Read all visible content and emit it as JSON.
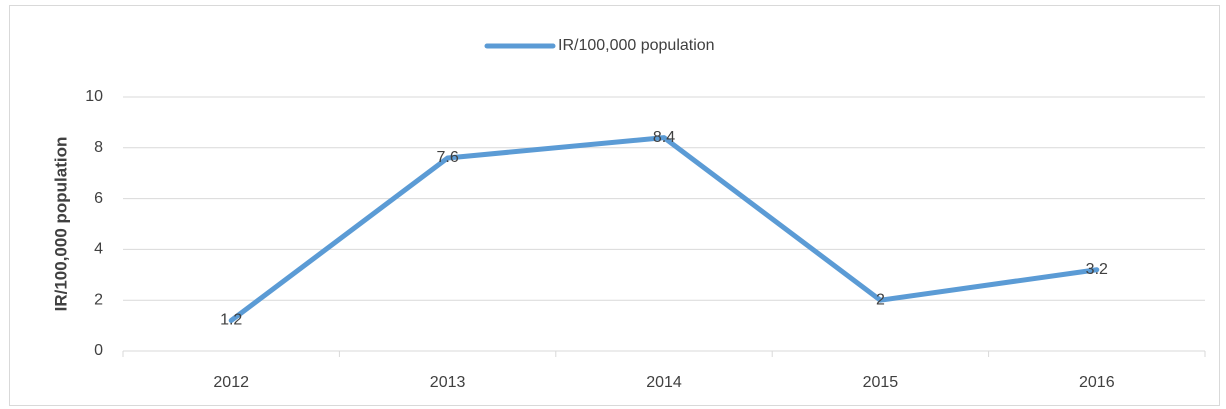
{
  "chart_data": {
    "type": "line",
    "categories": [
      "2012",
      "2013",
      "2014",
      "2015",
      "2016"
    ],
    "series": [
      {
        "name": "IR/100,000 population",
        "color": "#5b9bd5",
        "values": [
          1.2,
          7.6,
          8.4,
          2,
          3.2
        ]
      }
    ],
    "y_label": "IR/100,000 population",
    "ylim": [
      0,
      10
    ],
    "yticks": [
      0,
      2,
      4,
      6,
      8,
      10
    ],
    "grid": true,
    "legend": "top",
    "data_labels": true
  }
}
